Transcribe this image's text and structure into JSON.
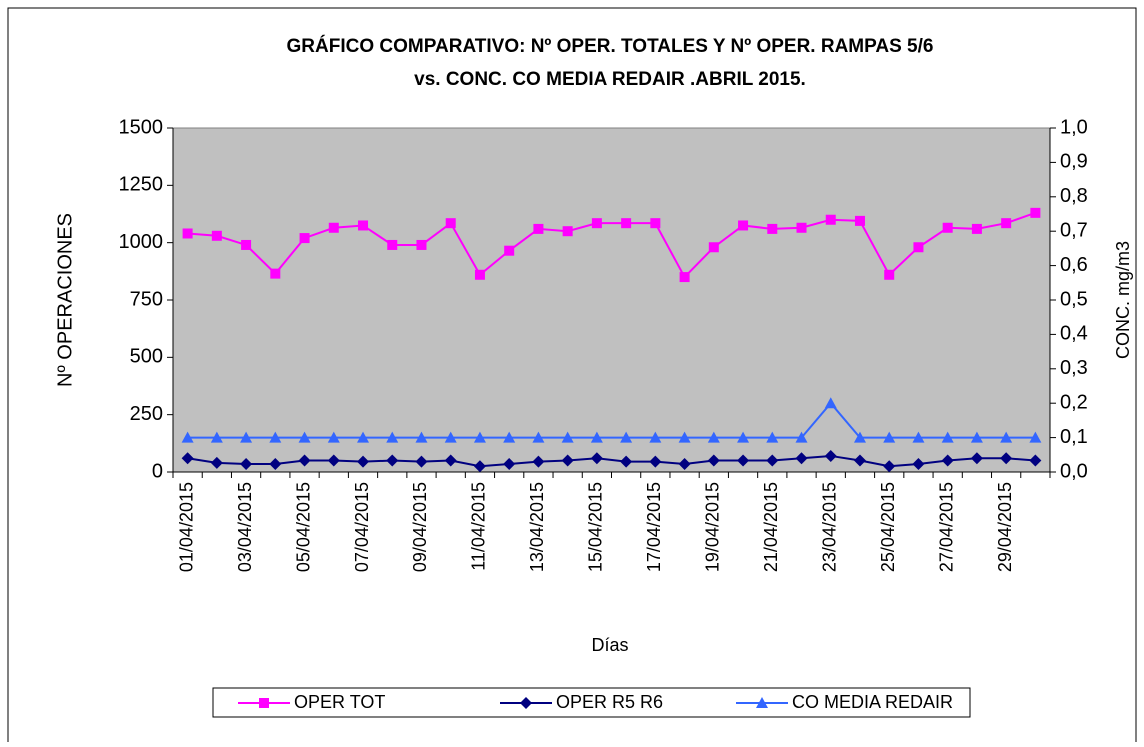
{
  "chart_data": {
    "type": "line",
    "title": [
      "GRÁFICO COMPARATIVO: Nº OPER. TOTALES Y Nº OPER. RAMPAS 5/6",
      "vs. CONC. CO MEDIA REDAIR .ABRIL 2015."
    ],
    "x_label": "Días",
    "y_label": "Nº OPERACIONES",
    "y2_label": "CONC. mg/m3",
    "categories": [
      "01/04/2015",
      null,
      "03/04/2015",
      null,
      "05/04/2015",
      null,
      "07/04/2015",
      null,
      "09/04/2015",
      null,
      "11/04/2015",
      null,
      "13/04/2015",
      null,
      "15/04/2015",
      null,
      "17/04/2015",
      null,
      "19/04/2015",
      null,
      "21/04/2015",
      null,
      "23/04/2015",
      null,
      "25/04/2015",
      null,
      "27/04/2015",
      null,
      "29/04/2015",
      null
    ],
    "series": [
      {
        "name": "OPER TOT",
        "color": "#ff00ff",
        "marker": "square",
        "values": [
          1040,
          1030,
          990,
          865,
          1020,
          1065,
          1075,
          990,
          990,
          1085,
          860,
          965,
          1060,
          1050,
          1085,
          1085,
          1085,
          850,
          980,
          1075,
          1060,
          1065,
          1100,
          1095,
          860,
          980,
          1065,
          1060,
          1085,
          1130
        ]
      },
      {
        "name": "OPER R5 R6",
        "color": "#000080",
        "marker": "diamond",
        "values": [
          60,
          40,
          35,
          35,
          50,
          50,
          45,
          50,
          45,
          50,
          25,
          35,
          45,
          50,
          60,
          45,
          45,
          35,
          50,
          50,
          50,
          60,
          70,
          50,
          25,
          35,
          50,
          60,
          60,
          50
        ]
      },
      {
        "name": "CO MEDIA REDAIR",
        "color": "#3366ff",
        "marker": "triangle",
        "axis": "y2",
        "values": [
          0.1,
          0.1,
          0.1,
          0.1,
          0.1,
          0.1,
          0.1,
          0.1,
          0.1,
          0.1,
          0.1,
          0.1,
          0.1,
          0.1,
          0.1,
          0.1,
          0.1,
          0.1,
          0.1,
          0.1,
          0.1,
          0.1,
          0.2,
          0.1,
          0.1,
          0.1,
          0.1,
          0.1,
          0.1,
          0.1
        ]
      }
    ],
    "ylim": [
      0,
      1500
    ],
    "yticks": [
      0,
      250,
      500,
      750,
      1000,
      1250,
      1500
    ],
    "y2lim": [
      0,
      1
    ],
    "y2ticks": [
      {
        "value": 0,
        "label": "0,0"
      },
      {
        "value": 0.1,
        "label": "0,1"
      },
      {
        "value": 0.2,
        "label": "0,2"
      },
      {
        "value": 0.3,
        "label": "0,3"
      },
      {
        "value": 0.4,
        "label": "0,4"
      },
      {
        "value": 0.5,
        "label": "0,5"
      },
      {
        "value": 0.6,
        "label": "0,6"
      },
      {
        "value": 0.7,
        "label": "0,7"
      },
      {
        "value": 0.8,
        "label": "0,8"
      },
      {
        "value": 0.9,
        "label": "0,9"
      },
      {
        "value": 1,
        "label": "1,0"
      }
    ],
    "plot_background": "#c0c0c0",
    "legend": "bottom"
  }
}
